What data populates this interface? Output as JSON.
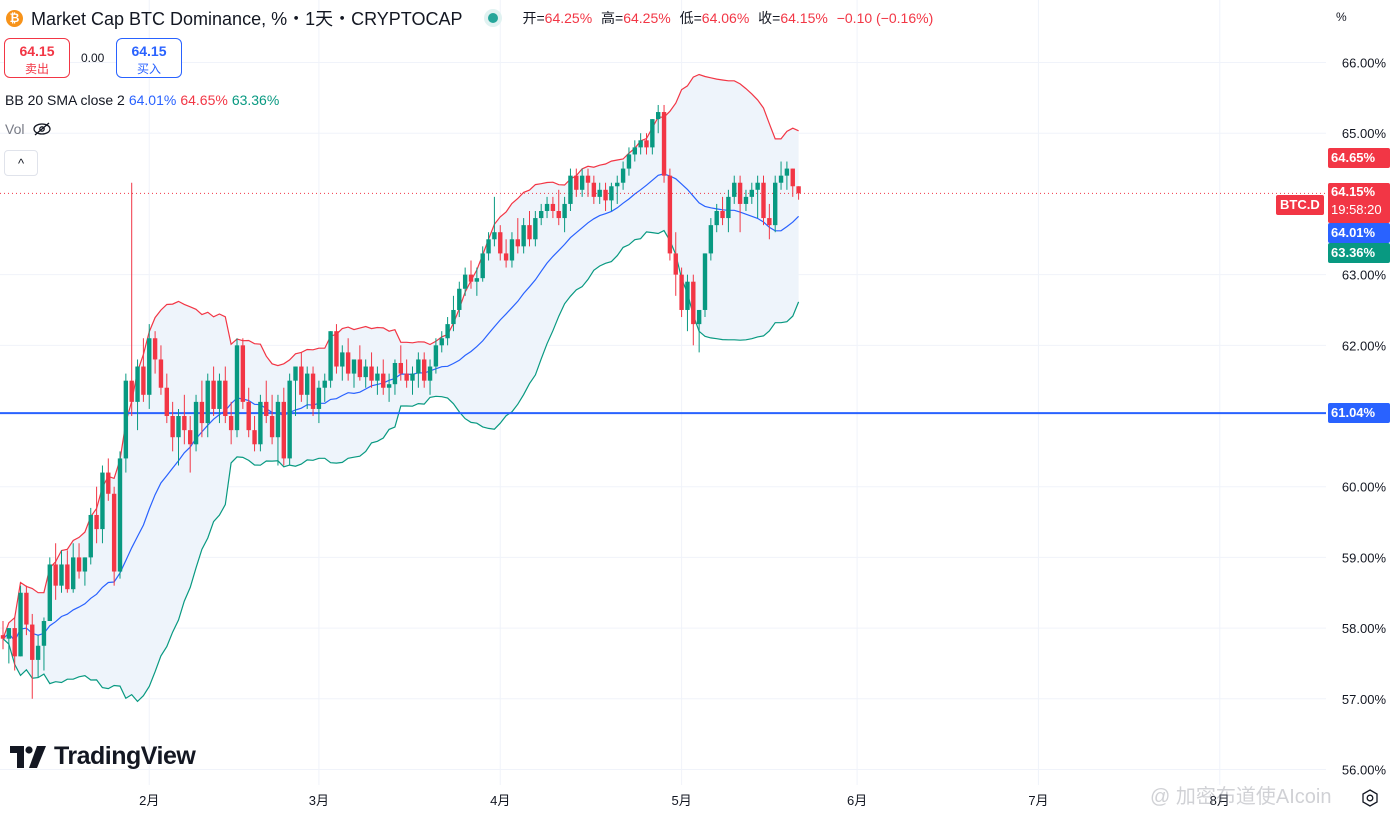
{
  "header": {
    "coin_icon_symbol": "₿",
    "title": "Market Cap BTC Dominance, %・1天・CRYPTOCAP",
    "ohlc": {
      "open_label": "开=",
      "open_value": "64.25%",
      "high_label": "高=",
      "high_value": "64.25%",
      "low_label": "低=",
      "low_value": "64.06%",
      "close_label": "收=",
      "close_value": "64.15%",
      "change": "−0.10 (−0.16%)"
    }
  },
  "trade": {
    "sell_price": "64.15",
    "sell_label": "卖出",
    "spread": "0.00",
    "buy_price": "64.15",
    "buy_label": "买入"
  },
  "indicators": {
    "bb_label": "BB 20 SMA close 2",
    "bb_basis": "64.01%",
    "bb_upper": "64.65%",
    "bb_lower": "63.36%",
    "vol_label": "Vol",
    "collapse_symbol": "^"
  },
  "toolbar": {
    "percent_button": "%"
  },
  "axis_tags": {
    "symbol": "BTC.D",
    "last_price": "64.15%",
    "countdown": "19:58:20",
    "upper": "64.65%",
    "basis": "64.01%",
    "lower": "63.36%",
    "hline": "61.04%"
  },
  "logo_text": "TradingView",
  "watermark": "@ 加密布道使AIcoin",
  "colors": {
    "up": "#089981",
    "down": "#f23645",
    "bb_basis": "#2962ff",
    "bb_upper": "#f23645",
    "bb_lower": "#089981",
    "bb_fill": "#eef4fb",
    "hline": "#2962ff",
    "grid": "#f0f3fa"
  },
  "chart_data": {
    "type": "candlestick",
    "symbol": "BTC.D",
    "timeframe": "1天",
    "y_axis_ticks": [
      "66.00%",
      "65.00%",
      "63.00%",
      "62.00%",
      "60.00%",
      "59.00%",
      "58.00%",
      "57.00%",
      "56.00%"
    ],
    "x_axis_ticks": [
      "2月",
      "3月",
      "4月",
      "5月",
      "6月",
      "7月",
      "8月"
    ],
    "ylim": [
      55.95,
      66.8
    ],
    "horizontal_line": 61.04,
    "last_close": 64.15,
    "candles": [
      [
        57.9,
        58.1,
        57.7,
        57.85
      ],
      [
        57.85,
        58.0,
        57.5,
        58.0
      ],
      [
        58.0,
        58.15,
        57.4,
        57.6
      ],
      [
        57.6,
        58.6,
        57.6,
        58.5
      ],
      [
        58.5,
        58.6,
        57.9,
        58.05
      ],
      [
        58.05,
        58.2,
        57.0,
        57.55
      ],
      [
        57.55,
        57.9,
        57.3,
        57.75
      ],
      [
        57.75,
        58.15,
        57.4,
        58.1
      ],
      [
        58.1,
        59.0,
        58.1,
        58.9
      ],
      [
        58.9,
        59.2,
        58.4,
        58.6
      ],
      [
        58.6,
        59.1,
        58.5,
        58.9
      ],
      [
        58.9,
        59.1,
        58.5,
        58.55
      ],
      [
        58.55,
        59.2,
        58.5,
        59.0
      ],
      [
        59.0,
        59.2,
        58.7,
        58.8
      ],
      [
        58.8,
        59.0,
        58.6,
        59.0
      ],
      [
        59.0,
        59.7,
        58.9,
        59.6
      ],
      [
        59.6,
        60.0,
        59.2,
        59.4
      ],
      [
        59.4,
        60.3,
        59.2,
        60.2
      ],
      [
        60.2,
        60.4,
        59.8,
        59.9
      ],
      [
        59.9,
        60.0,
        58.6,
        58.8
      ],
      [
        58.8,
        60.5,
        58.7,
        60.4
      ],
      [
        60.4,
        61.6,
        60.2,
        61.5
      ],
      [
        61.5,
        64.3,
        61.0,
        61.2
      ],
      [
        61.2,
        61.8,
        60.8,
        61.7
      ],
      [
        61.7,
        62.1,
        61.2,
        61.3
      ],
      [
        61.3,
        62.3,
        61.1,
        62.1
      ],
      [
        62.1,
        62.2,
        61.6,
        61.8
      ],
      [
        61.8,
        62.0,
        61.3,
        61.4
      ],
      [
        61.4,
        61.6,
        60.9,
        61.0
      ],
      [
        61.0,
        61.2,
        60.5,
        60.7
      ],
      [
        60.7,
        61.1,
        60.3,
        61.0
      ],
      [
        61.0,
        61.3,
        60.6,
        60.8
      ],
      [
        60.8,
        61.0,
        60.2,
        60.6
      ],
      [
        60.6,
        61.3,
        60.5,
        61.2
      ],
      [
        61.2,
        61.5,
        60.7,
        60.9
      ],
      [
        60.9,
        61.6,
        60.7,
        61.5
      ],
      [
        61.5,
        61.7,
        61.0,
        61.1
      ],
      [
        61.1,
        61.6,
        60.9,
        61.5
      ],
      [
        61.5,
        61.7,
        60.9,
        61.0
      ],
      [
        61.0,
        61.2,
        60.6,
        60.8
      ],
      [
        60.8,
        62.1,
        60.7,
        62.0
      ],
      [
        62.0,
        62.1,
        61.1,
        61.2
      ],
      [
        61.2,
        61.4,
        60.7,
        60.8
      ],
      [
        60.8,
        61.0,
        60.5,
        60.6
      ],
      [
        60.6,
        61.3,
        60.5,
        61.2
      ],
      [
        61.2,
        61.5,
        60.9,
        61.0
      ],
      [
        61.0,
        61.3,
        60.6,
        60.7
      ],
      [
        60.7,
        61.3,
        60.3,
        61.2
      ],
      [
        61.2,
        61.4,
        60.3,
        60.4
      ],
      [
        60.4,
        61.6,
        60.3,
        61.5
      ],
      [
        61.5,
        61.7,
        61.0,
        61.7
      ],
      [
        61.7,
        61.9,
        61.2,
        61.3
      ],
      [
        61.3,
        61.7,
        61.1,
        61.6
      ],
      [
        61.6,
        61.7,
        61.0,
        61.1
      ],
      [
        61.1,
        61.5,
        60.9,
        61.4
      ],
      [
        61.4,
        61.6,
        61.2,
        61.5
      ],
      [
        61.5,
        62.2,
        61.4,
        62.2
      ],
      [
        62.2,
        62.3,
        61.6,
        61.7
      ],
      [
        61.7,
        62.0,
        61.5,
        61.9
      ],
      [
        61.9,
        62.1,
        61.5,
        61.6
      ],
      [
        61.6,
        61.8,
        61.4,
        61.8
      ],
      [
        61.8,
        62.0,
        61.5,
        61.55
      ],
      [
        61.55,
        61.8,
        61.4,
        61.7
      ],
      [
        61.7,
        61.9,
        61.4,
        61.5
      ],
      [
        61.5,
        61.7,
        61.3,
        61.6
      ],
      [
        61.6,
        61.8,
        61.3,
        61.4
      ],
      [
        61.4,
        61.6,
        61.2,
        61.45
      ],
      [
        61.45,
        61.8,
        61.3,
        61.75
      ],
      [
        61.75,
        62.0,
        61.5,
        61.6
      ],
      [
        61.6,
        61.8,
        61.4,
        61.5
      ],
      [
        61.5,
        61.7,
        61.3,
        61.6
      ],
      [
        61.6,
        61.9,
        61.4,
        61.8
      ],
      [
        61.8,
        61.9,
        61.4,
        61.5
      ],
      [
        61.5,
        61.8,
        61.3,
        61.7
      ],
      [
        61.7,
        62.1,
        61.6,
        62.0
      ],
      [
        62.0,
        62.2,
        61.9,
        62.1
      ],
      [
        62.1,
        62.4,
        62.0,
        62.3
      ],
      [
        62.3,
        62.7,
        62.2,
        62.5
      ],
      [
        62.5,
        62.9,
        62.4,
        62.8
      ],
      [
        62.8,
        63.1,
        62.7,
        63.0
      ],
      [
        63.0,
        63.2,
        62.8,
        62.9
      ],
      [
        62.9,
        63.1,
        62.7,
        62.95
      ],
      [
        62.95,
        63.4,
        62.9,
        63.3
      ],
      [
        63.3,
        63.6,
        63.2,
        63.5
      ],
      [
        63.5,
        64.1,
        63.4,
        63.6
      ],
      [
        63.6,
        63.7,
        63.2,
        63.3
      ],
      [
        63.3,
        63.5,
        63.1,
        63.2
      ],
      [
        63.2,
        63.6,
        63.1,
        63.5
      ],
      [
        63.5,
        63.8,
        63.3,
        63.4
      ],
      [
        63.4,
        63.8,
        63.3,
        63.7
      ],
      [
        63.7,
        63.9,
        63.4,
        63.5
      ],
      [
        63.5,
        63.9,
        63.4,
        63.8
      ],
      [
        63.8,
        64.0,
        63.7,
        63.9
      ],
      [
        63.9,
        64.1,
        63.8,
        64.0
      ],
      [
        64.0,
        64.1,
        63.8,
        63.9
      ],
      [
        63.9,
        64.2,
        63.7,
        63.8
      ],
      [
        63.8,
        64.1,
        63.6,
        64.0
      ],
      [
        64.0,
        64.5,
        63.9,
        64.4
      ],
      [
        64.4,
        64.5,
        64.1,
        64.2
      ],
      [
        64.2,
        64.5,
        64.1,
        64.4
      ],
      [
        64.4,
        64.5,
        64.1,
        64.3
      ],
      [
        64.3,
        64.4,
        64.0,
        64.1
      ],
      [
        64.1,
        64.3,
        64.0,
        64.2
      ],
      [
        64.2,
        64.3,
        63.9,
        64.05
      ],
      [
        64.05,
        64.3,
        63.9,
        64.25
      ],
      [
        64.25,
        64.4,
        64.0,
        64.3
      ],
      [
        64.3,
        64.6,
        64.2,
        64.5
      ],
      [
        64.5,
        64.8,
        64.4,
        64.7
      ],
      [
        64.7,
        64.9,
        64.6,
        64.8
      ],
      [
        64.8,
        65.0,
        64.7,
        64.9
      ],
      [
        64.9,
        65.0,
        64.7,
        64.8
      ],
      [
        64.8,
        65.2,
        64.7,
        65.2
      ],
      [
        65.2,
        65.4,
        65.0,
        65.3
      ],
      [
        65.3,
        65.4,
        64.3,
        64.4
      ],
      [
        64.4,
        64.5,
        63.2,
        63.3
      ],
      [
        63.3,
        63.6,
        62.7,
        63.0
      ],
      [
        63.0,
        63.1,
        62.4,
        62.5
      ],
      [
        62.5,
        63.0,
        62.2,
        62.9
      ],
      [
        62.9,
        63.0,
        62.0,
        62.3
      ],
      [
        62.3,
        62.5,
        61.9,
        62.5
      ],
      [
        62.5,
        63.3,
        62.4,
        63.3
      ],
      [
        63.3,
        63.8,
        63.2,
        63.7
      ],
      [
        63.7,
        64.0,
        63.6,
        63.9
      ],
      [
        63.9,
        64.1,
        63.7,
        63.8
      ],
      [
        63.8,
        64.2,
        63.6,
        64.1
      ],
      [
        64.1,
        64.4,
        64.0,
        64.3
      ],
      [
        64.3,
        64.4,
        63.6,
        64.0
      ],
      [
        64.0,
        64.2,
        63.9,
        64.1
      ],
      [
        64.1,
        64.3,
        64.0,
        64.2
      ],
      [
        64.2,
        64.4,
        63.8,
        64.3
      ],
      [
        64.3,
        64.4,
        63.7,
        63.8
      ],
      [
        63.8,
        64.0,
        63.5,
        63.7
      ],
      [
        63.7,
        64.4,
        63.6,
        64.3
      ],
      [
        64.3,
        64.6,
        64.2,
        64.4
      ],
      [
        64.4,
        64.6,
        64.2,
        64.5
      ],
      [
        64.5,
        64.5,
        64.1,
        64.25
      ],
      [
        64.25,
        64.25,
        64.06,
        64.15
      ]
    ],
    "bollinger": {
      "period": 20,
      "stddev": 2,
      "last_upper": 64.65,
      "last_basis": 64.01,
      "last_lower": 63.36
    }
  }
}
